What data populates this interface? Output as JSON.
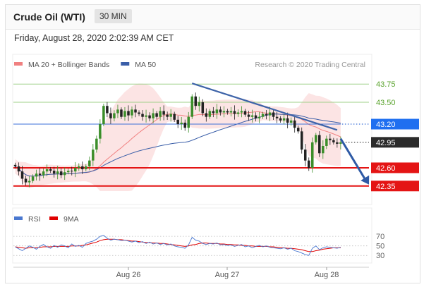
{
  "header": {
    "title": "Crude Oil (WTI)",
    "timeframe": "30 MIN"
  },
  "date_line": "Friday, August 28, 2020 2:02:39 AM CET",
  "credit": "Research © 2020 Trading Central",
  "chart_data": {
    "type": "candlestick",
    "legend": [
      {
        "name": "MA 20 + Bollinger Bands",
        "color": "#f08080"
      },
      {
        "name": "MA 50",
        "color": "#3a5ea8"
      }
    ],
    "y_range": [
      42.28,
      43.82
    ],
    "x_labels": [
      "Aug 26",
      "Aug 27",
      "Aug 28"
    ],
    "levels": [
      {
        "value": 43.75,
        "label": "43.75",
        "kind": "green"
      },
      {
        "value": 43.5,
        "label": "43.50",
        "kind": "green"
      },
      {
        "value": 43.2,
        "label": "43.20",
        "kind": "blue"
      },
      {
        "value": 42.95,
        "label": "42.95",
        "kind": "last"
      },
      {
        "value": 42.6,
        "label": "42.60",
        "kind": "red"
      },
      {
        "value": 42.35,
        "label": "42.35",
        "kind": "red"
      }
    ],
    "trendline": {
      "from": {
        "bar": 50,
        "value": 43.76
      },
      "to": {
        "bar": 91,
        "value": 43.12
      }
    },
    "forecast_arrow": {
      "from": {
        "bar": 92,
        "value": 43.0
      },
      "to": {
        "bar": 100,
        "value": 42.37
      }
    },
    "closes": [
      42.62,
      42.55,
      42.45,
      42.4,
      42.42,
      42.48,
      42.52,
      42.5,
      42.55,
      42.58,
      42.56,
      42.52,
      42.55,
      42.5,
      42.54,
      42.56,
      42.55,
      42.6,
      42.62,
      42.58,
      42.62,
      42.7,
      42.85,
      43.0,
      43.2,
      43.45,
      43.35,
      43.28,
      43.35,
      43.4,
      43.3,
      43.38,
      43.32,
      43.4,
      43.36,
      43.34,
      43.3,
      43.32,
      43.28,
      43.35,
      43.3,
      43.38,
      43.33,
      43.3,
      43.34,
      43.26,
      43.2,
      43.22,
      43.15,
      43.3,
      43.58,
      43.45,
      43.5,
      43.35,
      43.3,
      43.38,
      43.35,
      43.4,
      43.36,
      43.38,
      43.36,
      43.38,
      43.34,
      43.36,
      43.38,
      43.33,
      43.3,
      43.32,
      43.28,
      43.3,
      43.34,
      43.32,
      43.36,
      43.3,
      43.28,
      43.25,
      43.28,
      43.22,
      43.25,
      43.15,
      43.1,
      42.85,
      42.7,
      42.6,
      42.95,
      43.05,
      42.8,
      42.9,
      43.0,
      42.98,
      42.95,
      42.93,
      42.95
    ],
    "rsi": {
      "name": "RSI",
      "color": "#4a78d0",
      "ticks": [
        70,
        50,
        30
      ],
      "range": [
        20,
        85
      ],
      "values": [
        48,
        44,
        40,
        45,
        50,
        47,
        43,
        49,
        53,
        48,
        45,
        51,
        47,
        52,
        50,
        46,
        54,
        49,
        51,
        47,
        55,
        58,
        60,
        64,
        70,
        72,
        66,
        62,
        64,
        63,
        61,
        62,
        60,
        58,
        60,
        57,
        59,
        55,
        58,
        54,
        56,
        53,
        55,
        52,
        54,
        50,
        48,
        47,
        45,
        52,
        68,
        62,
        60,
        55,
        53,
        55,
        54,
        56,
        52,
        53,
        51,
        52,
        49,
        51,
        53,
        48,
        50,
        46,
        49,
        51,
        48,
        50,
        47,
        46,
        45,
        44,
        46,
        43,
        45,
        40,
        38,
        35,
        32,
        30,
        45,
        50,
        42,
        46,
        48,
        47,
        46,
        45,
        47
      ]
    },
    "ma9": {
      "name": "9MA",
      "color": "#e00000",
      "values": [
        48,
        47,
        46,
        45,
        46,
        46,
        46,
        47,
        48,
        48,
        48,
        49,
        49,
        49,
        49,
        49,
        50,
        50,
        50,
        51,
        52,
        54,
        56,
        58,
        61,
        63,
        64,
        64,
        64,
        63,
        63,
        62,
        61,
        60,
        60,
        59,
        58,
        57,
        57,
        56,
        56,
        55,
        55,
        54,
        53,
        52,
        51,
        50,
        49,
        50,
        52,
        53,
        55,
        56,
        56,
        55,
        55,
        55,
        54,
        54,
        53,
        53,
        52,
        52,
        51,
        51,
        50,
        50,
        49,
        49,
        49,
        49,
        48,
        48,
        47,
        46,
        46,
        45,
        45,
        44,
        43,
        42,
        40,
        38,
        38,
        40,
        41,
        43,
        44,
        45,
        46,
        46,
        46
      ]
    }
  }
}
